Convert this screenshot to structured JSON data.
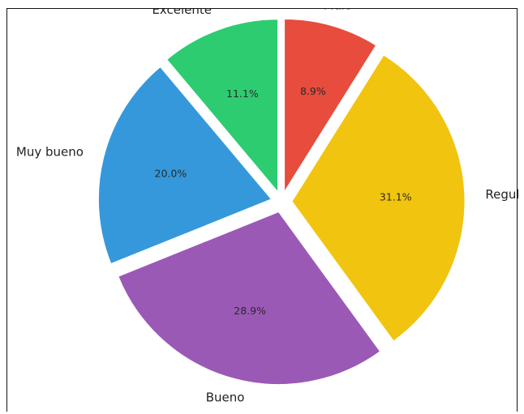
{
  "chart_data": {
    "type": "pie",
    "categories": [
      "Excelente",
      "Malo",
      "Regular",
      "Bueno",
      "Muy bueno"
    ],
    "values": [
      11.1,
      8.9,
      31.1,
      28.9,
      20.0
    ],
    "percent_labels": [
      "11.1%",
      "8.9%",
      "31.1%",
      "28.9%",
      "20.0%"
    ],
    "colors": [
      "#2ecc71",
      "#e74c3c",
      "#f1c40f",
      "#9b59b6",
      "#3498db"
    ],
    "exploded": true,
    "start_angle_deg": 90,
    "direction": "counterclockwise-from-top-for-first-slice"
  }
}
